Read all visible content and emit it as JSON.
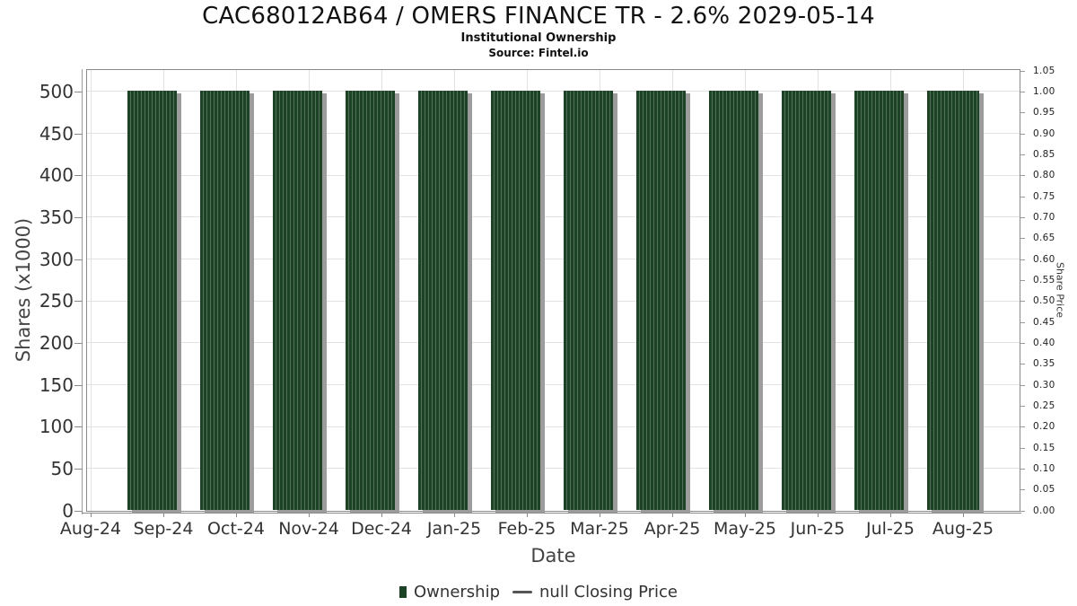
{
  "header": {
    "title": "CAC68012AB64 / OMERS FINANCE TR - 2.6% 2029-05-14",
    "subtitle": "Institutional Ownership",
    "source": "Source: Fintel.io"
  },
  "chart_data": {
    "type": "bar",
    "title": "CAC68012AB64 / OMERS FINANCE TR - 2.6% 2029-05-14",
    "subtitle": "Institutional Ownership",
    "source": "Source: Fintel.io",
    "xlabel": "Date",
    "ylabel": "Shares (x1000)",
    "y2label": "Share Price",
    "categories": [
      "Sep-24",
      "Oct-24",
      "Nov-24",
      "Dec-24",
      "Jan-25",
      "Feb-25",
      "Mar-25",
      "Apr-25",
      "May-25",
      "Jun-25",
      "Jul-25",
      "Aug-25"
    ],
    "values": [
      500,
      500,
      500,
      500,
      500,
      500,
      500,
      500,
      500,
      500,
      500,
      500
    ],
    "x_ticks": [
      "Aug-24",
      "Sep-24",
      "Oct-24",
      "Nov-24",
      "Dec-24",
      "Jan-25",
      "Feb-25",
      "Mar-25",
      "Apr-25",
      "May-25",
      "Jun-25",
      "Jul-25",
      "Aug-25"
    ],
    "y_ticks": [
      0,
      50,
      100,
      150,
      200,
      250,
      300,
      350,
      400,
      450,
      500
    ],
    "ylim": [
      0,
      525
    ],
    "y2_ticks": [
      "0.00",
      "0.05",
      "0.10",
      "0.15",
      "0.20",
      "0.25",
      "0.30",
      "0.35",
      "0.40",
      "0.45",
      "0.50",
      "0.55",
      "0.60",
      "0.65",
      "0.70",
      "0.75",
      "0.80",
      "0.85",
      "0.90",
      "0.95",
      "1.00",
      "1.05"
    ],
    "y2lim": [
      0,
      1.05
    ],
    "grid": true,
    "legend_position": "bottom",
    "legend": [
      {
        "label": "Ownership",
        "marker": "square",
        "color": "#1d4326"
      },
      {
        "label": "null Closing Price",
        "marker": "line",
        "color": "#555555"
      }
    ],
    "bar_color": "#1d4326",
    "bar_stripe_color": "#54705a",
    "bar_shadow_color": "#9c9c9c",
    "grid_color": "#e2e2e2"
  }
}
